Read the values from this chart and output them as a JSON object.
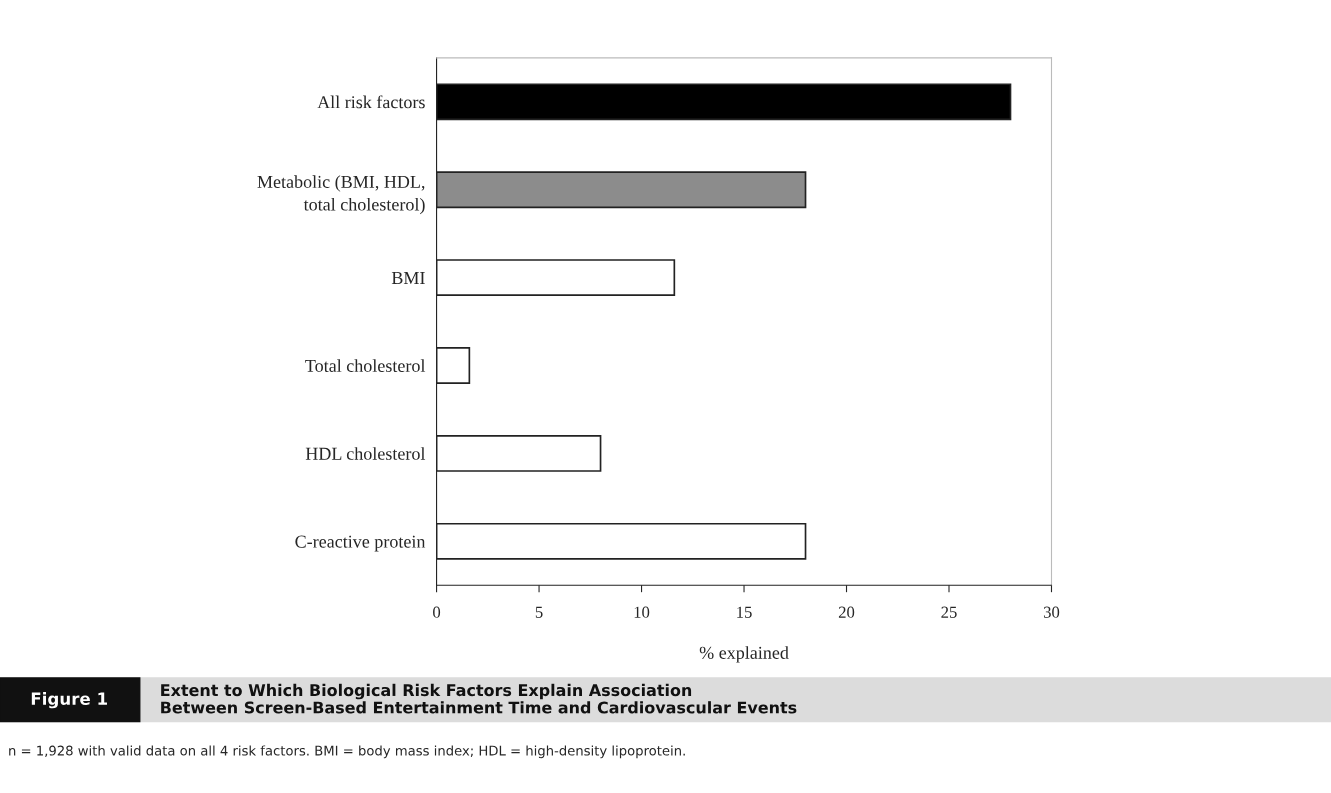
{
  "chart_data": {
    "type": "bar",
    "orientation": "horizontal",
    "title": "Extent to Which Biological Risk Factors Explain Association\nBetween Screen-Based Entertainment Time and Cardiovascular Events",
    "xlabel": "% explained",
    "categories": [
      "All risk factors",
      "Metabolic (BMI, HDL,\ntotal cholesterol)",
      "BMI",
      "Total cholesterol",
      "HDL cholesterol",
      "C-reactive protein"
    ],
    "values": [
      28,
      18,
      11.6,
      1.6,
      8,
      18
    ],
    "colors": [
      "#000000",
      "#8c8c8c",
      "#ffffff",
      "#ffffff",
      "#ffffff",
      "#ffffff"
    ],
    "xlim": [
      0,
      30
    ],
    "xticks": [
      0,
      5,
      10,
      15,
      20,
      25,
      30
    ],
    "grid": false,
    "legend": false,
    "annotations": [
      "Figure 1",
      "n = 1,928 with valid data on all 4 risk factors. BMI = body mass index; HDL = high-density lipoprotein."
    ]
  }
}
